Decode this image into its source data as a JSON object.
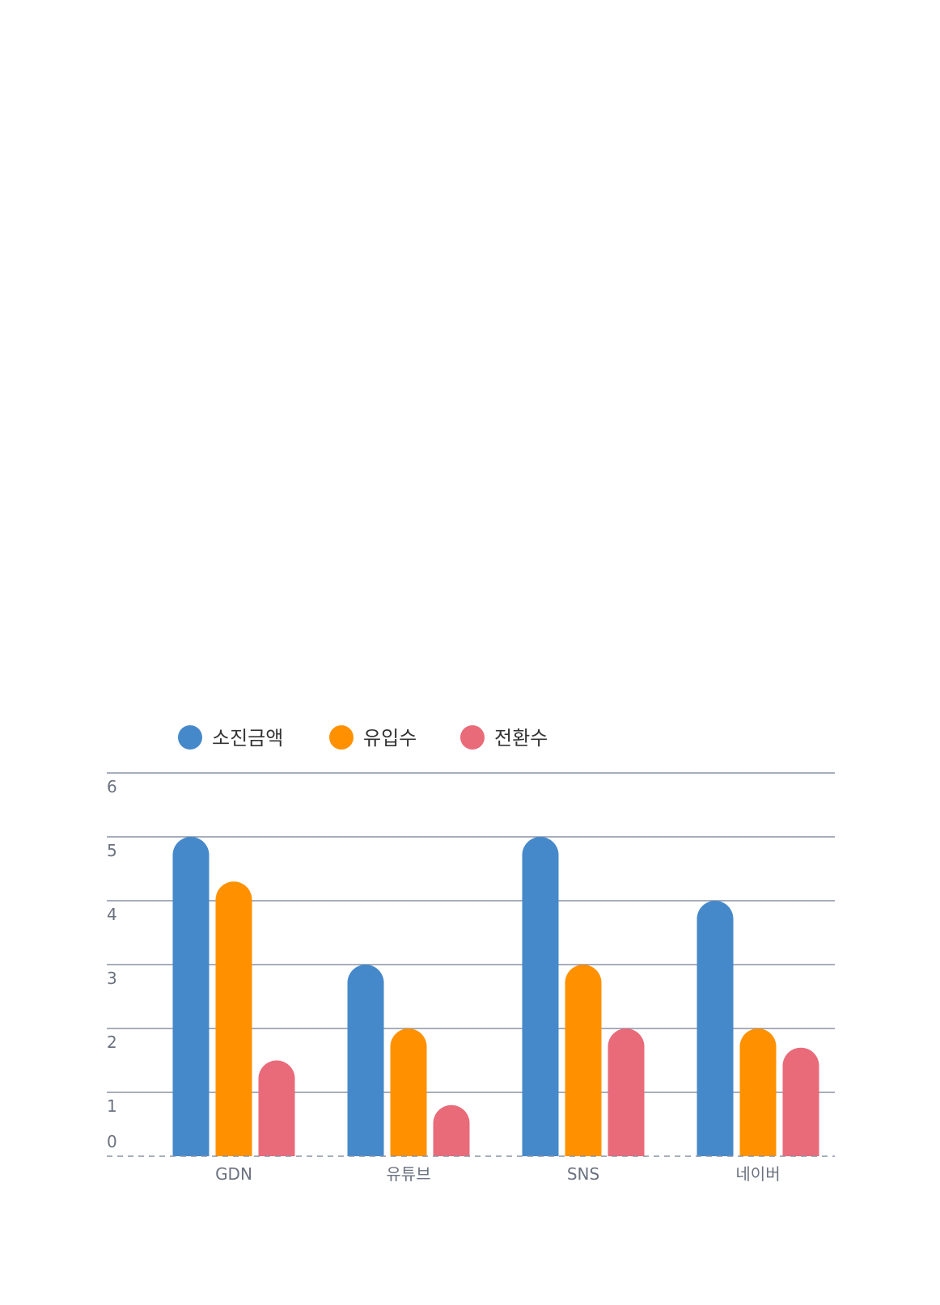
{
  "chart_data": {
    "type": "bar",
    "categories": [
      "GDN",
      "유튜브",
      "SNS",
      "네이버"
    ],
    "series": [
      {
        "name": "소진금액",
        "color": "#4589CA",
        "values": [
          5,
          3,
          5,
          4
        ]
      },
      {
        "name": "유입수",
        "color": "#FF9100",
        "values": [
          4.3,
          2,
          3,
          2
        ]
      },
      {
        "name": "전환수",
        "color": "#E96A78",
        "values": [
          1.5,
          0.8,
          2,
          1.7
        ]
      }
    ],
    "y_ticks": [
      "0",
      "1",
      "2",
      "3",
      "4",
      "5",
      "6"
    ],
    "ylim": [
      0,
      6
    ],
    "grid": true,
    "legend_position": "top-left",
    "colors": {
      "grid": "#8A93A5",
      "baseline": "#8A93A5",
      "tick_text": "#6b7280",
      "legend_text": "#333333"
    }
  }
}
